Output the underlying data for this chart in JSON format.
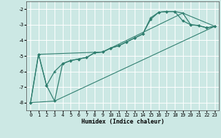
{
  "title": "",
  "xlabel": "Humidex (Indice chaleur)",
  "background_color": "#cce8e4",
  "grid_color": "#ffffff",
  "line_color": "#2e7d6e",
  "xlim": [
    -0.5,
    23.5
  ],
  "ylim": [
    -8.5,
    -1.5
  ],
  "xticks": [
    0,
    1,
    2,
    3,
    4,
    5,
    6,
    7,
    8,
    9,
    10,
    11,
    12,
    13,
    14,
    15,
    16,
    17,
    18,
    19,
    20,
    21,
    22,
    23
  ],
  "yticks": [
    -8,
    -7,
    -6,
    -5,
    -4,
    -3,
    -2
  ],
  "line1_x": [
    0,
    1,
    2,
    3,
    4,
    5,
    6,
    7,
    8,
    9,
    10,
    11,
    12,
    13,
    14,
    15,
    16,
    17,
    18,
    19,
    20,
    21,
    22,
    23
  ],
  "line1_y": [
    -8.0,
    -4.9,
    -6.9,
    -6.0,
    -5.5,
    -5.3,
    -5.2,
    -5.1,
    -4.8,
    -4.75,
    -4.5,
    -4.35,
    -4.1,
    -3.85,
    -3.6,
    -2.55,
    -2.2,
    -2.15,
    -2.15,
    -2.25,
    -3.0,
    -3.05,
    -3.2,
    -3.1
  ],
  "line2_x": [
    0,
    1,
    2,
    3,
    4,
    5,
    6,
    7,
    8,
    9,
    10,
    11,
    12,
    13,
    14,
    15,
    16,
    17,
    18,
    19,
    20,
    21,
    22,
    23
  ],
  "line2_y": [
    -8.0,
    -4.9,
    -6.9,
    -7.9,
    -5.5,
    -5.3,
    -5.2,
    -5.1,
    -4.8,
    -4.75,
    -4.5,
    -4.35,
    -4.1,
    -3.85,
    -3.6,
    -2.65,
    -2.2,
    -2.15,
    -2.15,
    -2.75,
    -3.0,
    -3.05,
    -3.2,
    -3.1
  ],
  "line3_x": [
    0,
    3,
    23
  ],
  "line3_y": [
    -8.0,
    -7.9,
    -3.1
  ],
  "line4_x": [
    1,
    9,
    19,
    23
  ],
  "line4_y": [
    -4.9,
    -4.75,
    -2.25,
    -3.1
  ]
}
